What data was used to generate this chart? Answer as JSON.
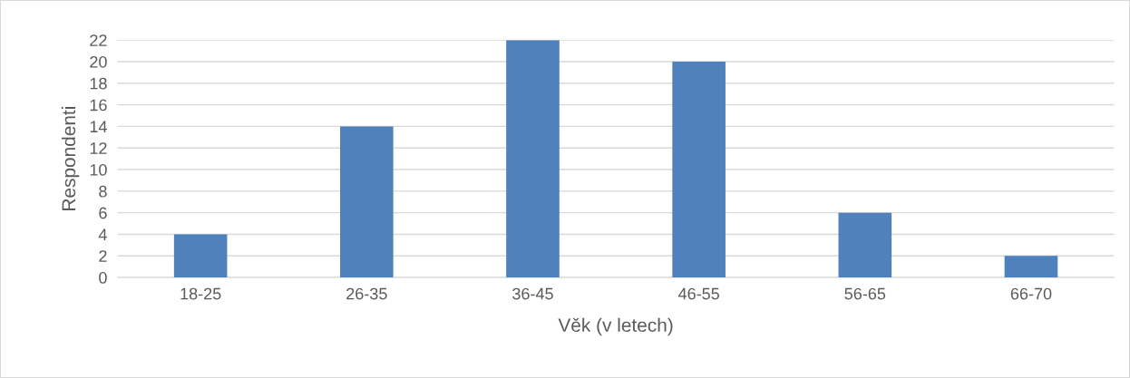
{
  "chart_data": {
    "type": "bar",
    "xlabel": "Věk (v letech)",
    "ylabel": "Respondenti",
    "categories": [
      "18-25",
      "26-35",
      "36-45",
      "46-55",
      "56-65",
      "66-70"
    ],
    "values": [
      4,
      14,
      22,
      20,
      6,
      2
    ],
    "color": "#4f81bd",
    "ylim": [
      0,
      22
    ],
    "yticks": [
      0,
      2,
      4,
      6,
      8,
      10,
      12,
      14,
      16,
      18,
      20,
      22
    ],
    "grid": "y",
    "legend": false
  }
}
